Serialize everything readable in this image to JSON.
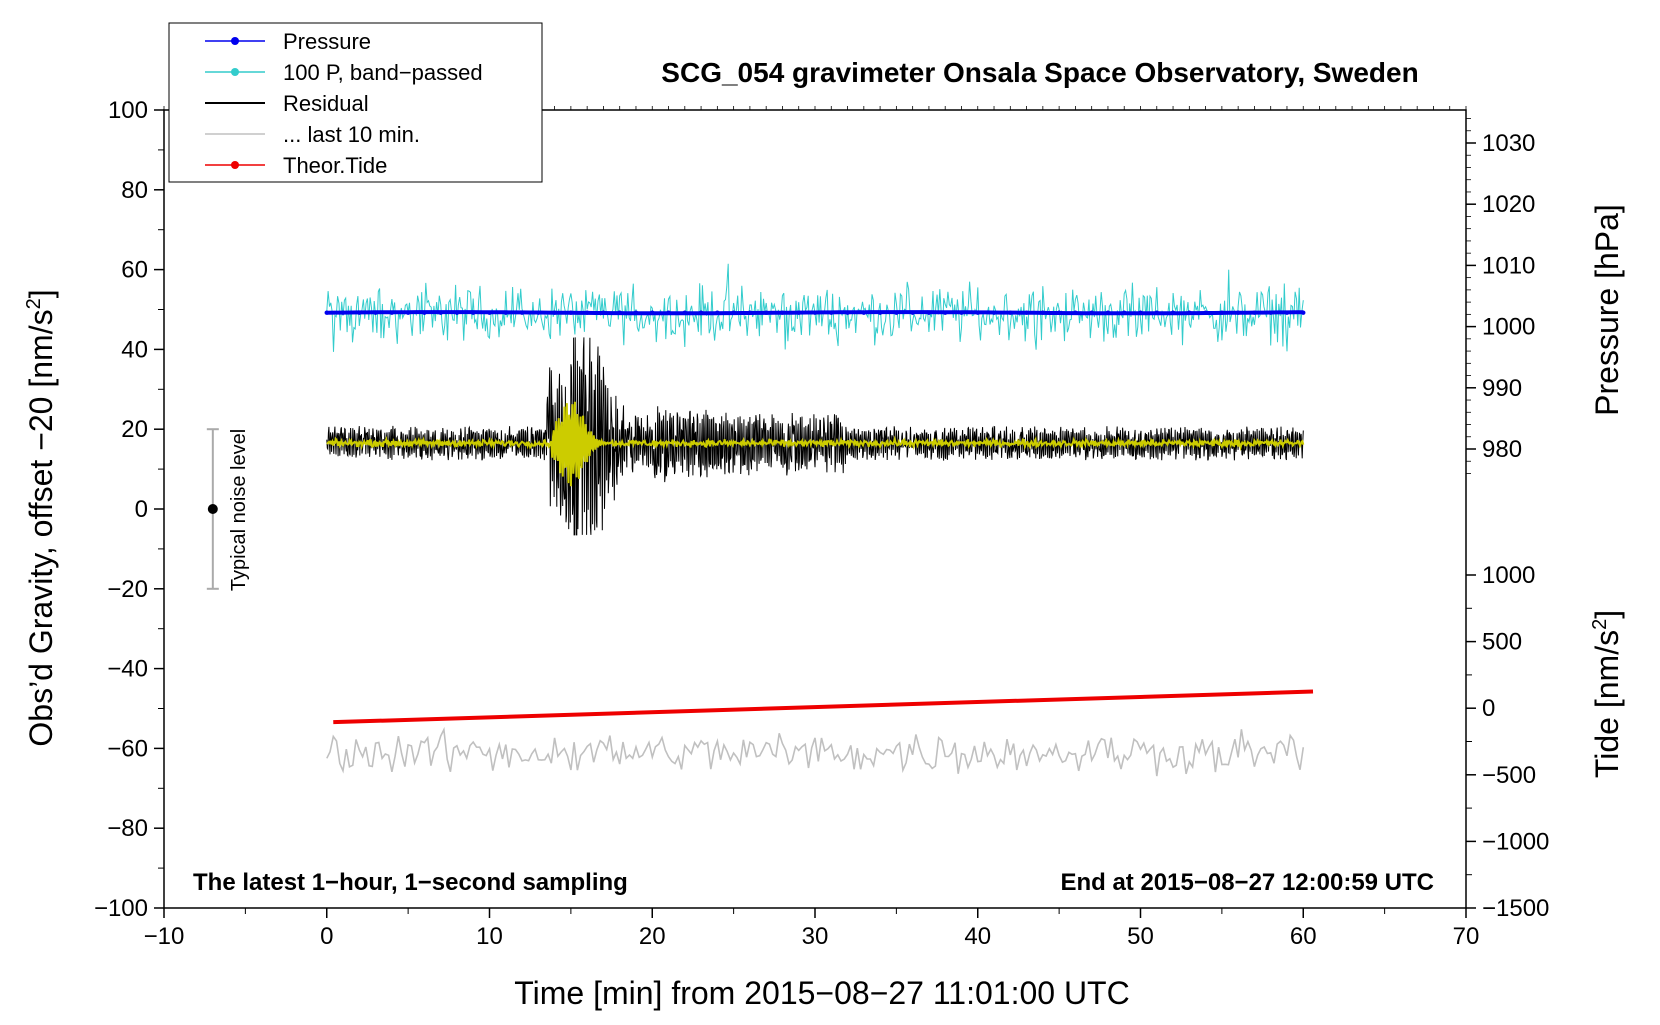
{
  "chart_data": {
    "type": "line",
    "title": "SCG_054 gravimeter Onsala Space Observatory, Sweden",
    "xlabel": "Time [min] from 2015−08−27 11:01:00 UTC",
    "ylabel_left_prefix": "Obs’d Gravity, offset −20 [nm/s",
    "ylabel_left_sup": "2",
    "ylabel_left_suffix": "]",
    "ylabel_right_pressure": "Pressure [hPa]",
    "ylabel_right_tide_prefix": "Tide [nm/s",
    "ylabel_right_tide_sup": "2",
    "ylabel_right_tide_suffix": "]",
    "xlim": [
      -10,
      70
    ],
    "ylim_left": [
      -100,
      100
    ],
    "ylim_pressure": [
      975,
      1035
    ],
    "ylim_tide": [
      -1500,
      1000
    ],
    "x_ticks": [
      -10,
      0,
      10,
      20,
      30,
      40,
      50,
      60,
      70
    ],
    "x_tick_labels": [
      "−10",
      "0",
      "10",
      "20",
      "30",
      "40",
      "50",
      "60",
      "70"
    ],
    "y_left_ticks": [
      -100,
      -80,
      -60,
      -40,
      -20,
      0,
      20,
      40,
      60,
      80,
      100
    ],
    "y_left_tick_labels": [
      "−100",
      "−80",
      "−60",
      "−40",
      "−20",
      "0",
      "20",
      "40",
      "60",
      "80",
      "100"
    ],
    "pressure_ticks": [
      980,
      990,
      1000,
      1010,
      1020,
      1030
    ],
    "pressure_tick_labels": [
      "980",
      "990",
      "1000",
      "1010",
      "1020",
      "1030"
    ],
    "tide_ticks": [
      -1500,
      -1000,
      -500,
      0,
      500,
      1000
    ],
    "tide_tick_labels": [
      "−1500",
      "−1000",
      "−500",
      "0",
      "500",
      "1000"
    ],
    "legend": [
      {
        "label": "Pressure",
        "color": "#0000ee",
        "marker": true
      },
      {
        "label": "100 P, band−passed",
        "color": "#33cccc",
        "marker": true
      },
      {
        "label": "Residual",
        "color": "#000000",
        "marker": false
      },
      {
        "label": "... last 10 min.",
        "color": "#c0c0c0",
        "marker": false
      },
      {
        "label": "Theor.Tide",
        "color": "#ee0000",
        "marker": true
      }
    ],
    "series": [
      {
        "name": "Pressure",
        "color": "#0000ee",
        "axis": "left",
        "x_range": [
          0,
          60
        ],
        "level": 49.2,
        "description_values": {
          "pressure_hPa": 1002
        }
      },
      {
        "name": "100 P, band−passed",
        "color": "#33cccc",
        "axis": "left",
        "x_range": [
          0,
          60
        ],
        "center": 49,
        "amplitude": 6,
        "min": 33.5,
        "max": 62.5
      },
      {
        "name": "Residual",
        "color": "#000000",
        "axis": "left",
        "x_range": [
          0,
          60
        ],
        "center": 16.5,
        "amplitude": 4,
        "event_start": 13.5,
        "event_peak": 15.8,
        "event_max": 43,
        "event_min": -6.5
      },
      {
        "name": "Residual (smoothed)",
        "color": "#cccc00",
        "axis": "left",
        "x_range": [
          0,
          60
        ],
        "center": 16.5
      },
      {
        "name": "... last 10 min.",
        "color": "#c0c0c0",
        "axis": "left",
        "x_range": [
          0,
          60
        ],
        "center": -61,
        "amplitude": 4,
        "min": -68,
        "max": -54
      },
      {
        "name": "Theor.Tide",
        "color": "#ee0000",
        "axis": "tide",
        "x": [
          0.4,
          60.6
        ],
        "values": [
          -105,
          125
        ]
      }
    ],
    "noise_marker": {
      "label": "Typical noise level",
      "x": -7,
      "y": 0,
      "range": [
        -20,
        20
      ]
    },
    "note_left": "The latest 1−hour, 1−second sampling",
    "note_right": "End at 2015−08−27 12:00:59 UTC"
  }
}
